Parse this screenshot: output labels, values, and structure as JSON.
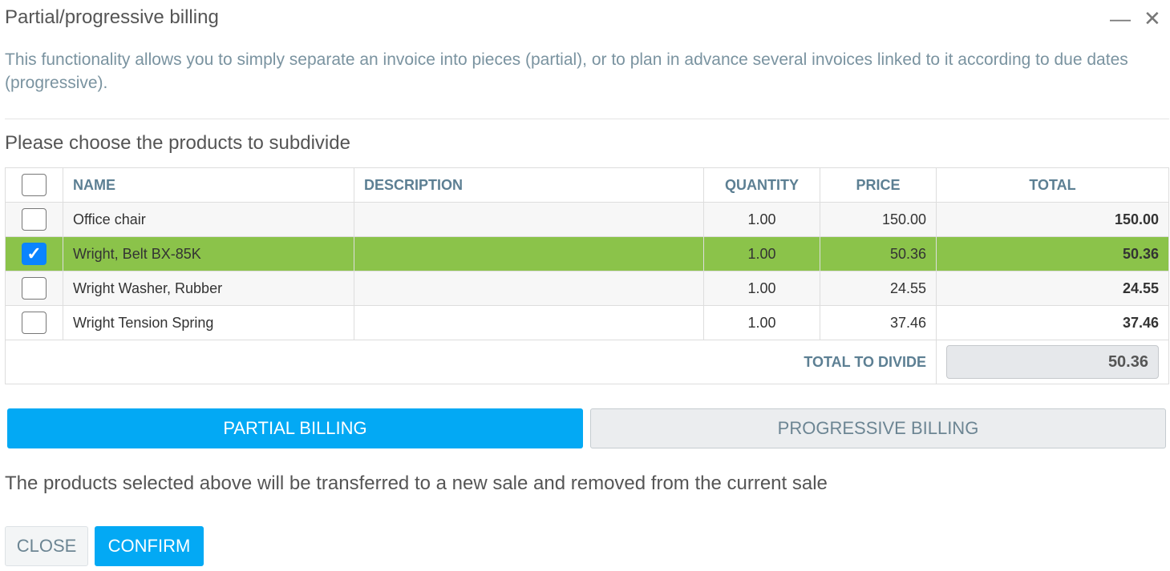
{
  "dialog": {
    "title": "Partial/progressive billing",
    "minimize_icon": "minimize-icon",
    "close_icon": "close-icon",
    "intro": "This functionality allows you to simply separate an invoice into pieces (partial), or to plan in advance several invoices linked to it according to due dates (progressive).",
    "subtitle": "Please choose the products to subdivide"
  },
  "table": {
    "headers": {
      "name": "NAME",
      "description": "DESCRIPTION",
      "quantity": "QUANTITY",
      "price": "PRICE",
      "total": "TOTAL"
    },
    "rows": [
      {
        "name": "Office chair",
        "description": "",
        "quantity": "1.00",
        "price": "150.00",
        "total": "150.00",
        "checked": false
      },
      {
        "name": "Wright, Belt BX-85K",
        "description": "",
        "quantity": "1.00",
        "price": "50.36",
        "total": "50.36",
        "checked": true
      },
      {
        "name": "Wright Washer, Rubber",
        "description": "",
        "quantity": "1.00",
        "price": "24.55",
        "total": "24.55",
        "checked": false
      },
      {
        "name": "Wright Tension Spring",
        "description": "",
        "quantity": "1.00",
        "price": "37.46",
        "total": "37.46",
        "checked": false
      }
    ],
    "total_label": "TOTAL TO DIVIDE",
    "total_value": "50.36"
  },
  "tabs": {
    "partial": "PARTIAL BILLING",
    "progressive": "PROGRESSIVE BILLING",
    "active": "partial"
  },
  "note": "The products selected above will be transferred to a new sale and removed from the current sale",
  "buttons": {
    "close": "CLOSE",
    "confirm": "CONFIRM"
  },
  "colors": {
    "accent": "#03a9f4",
    "selected_row": "#8bc34a",
    "checkbox": "#0a84ff"
  }
}
